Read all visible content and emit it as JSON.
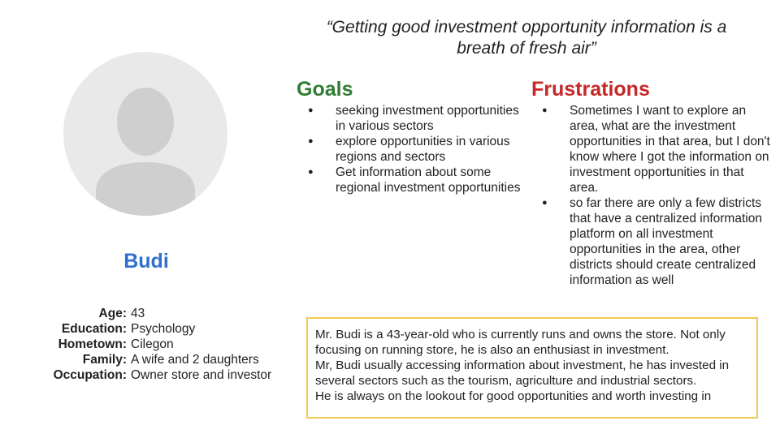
{
  "persona": {
    "name": "Budi",
    "details": [
      {
        "label": "Age:",
        "value": "43"
      },
      {
        "label": "Education:",
        "value": "Psychology"
      },
      {
        "label": "Hometown:",
        "value": "Cilegon"
      },
      {
        "label": "Family:",
        "value": "A wife and 2 daughters"
      },
      {
        "label": "Occupation:",
        "value": "Owner store and investor"
      }
    ]
  },
  "quote": "“Getting good investment opportunity information is a breath of fresh air”",
  "goals": {
    "title": "Goals",
    "items": [
      "seeking investment opportunities in various sectors",
      "explore opportunities in various regions and sectors",
      "Get information about some regional investment opportunities"
    ]
  },
  "frustrations": {
    "title": "Frustrations",
    "items": [
      "Sometimes I want to explore an area, what are the investment opportunities in that area, but I don't know where I got the information on investment opportunities in that area.",
      "so far there are only a few districts that have a centralized information platform on all investment opportunities in the area, other districts should create centralized information as well"
    ]
  },
  "bio": {
    "lines": [
      "Mr. Budi is a 43-year-old who is currently runs and owns the store. Not only focusing on running store, he is also an enthusiast in investment.",
      "Mr, Budi usually accessing information about investment, he has invested in several sectors such as the tourism, agriculture and industrial sectors.",
      "He is always on the lookout for good opportunities and worth investing in"
    ]
  },
  "colors": {
    "name": "#2f6fd0",
    "goals": "#2e7d32",
    "frustrations": "#c62828",
    "bio_border": "#f2c94c",
    "avatar_bg": "#e9e9e9",
    "avatar_fg": "#cfcfcf"
  }
}
